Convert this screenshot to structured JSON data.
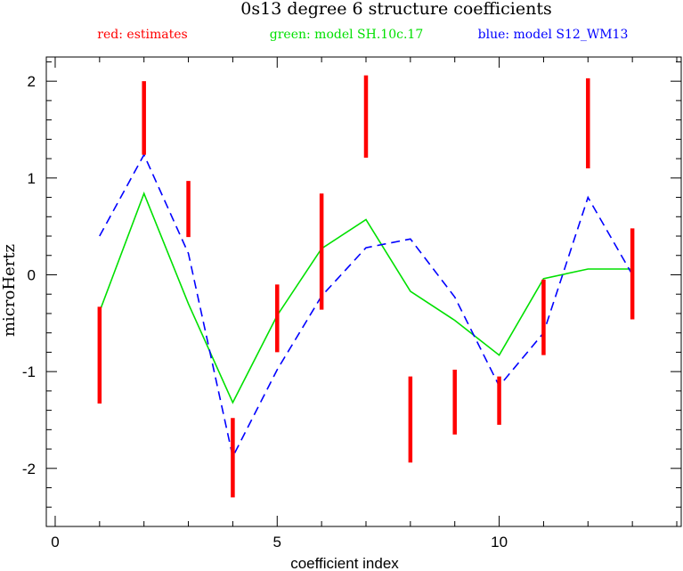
{
  "chart_data": {
    "type": "line",
    "title": "0s13 degree 6 structure coefficients",
    "legend": [
      {
        "label": "red: estimates",
        "color": "#ff0000"
      },
      {
        "label": "green: model SH.10c.17",
        "color": "#00e000"
      },
      {
        "label": "blue: model S12_WM13",
        "color": "#0000ff"
      }
    ],
    "xlabel": "coefficient index",
    "ylabel": "microHertz",
    "xlim": [
      -0.2,
      14.1
    ],
    "ylim": [
      -2.6,
      2.25
    ],
    "x_ticks": [
      {
        "value": 0,
        "label": "0"
      },
      {
        "value": 5,
        "label": "5"
      },
      {
        "value": 10,
        "label": "10"
      }
    ],
    "y_ticks": [
      {
        "value": 2,
        "label": "2"
      },
      {
        "value": 1,
        "label": "1"
      },
      {
        "value": 0,
        "label": "0"
      },
      {
        "value": -1,
        "label": "-1"
      },
      {
        "value": -2,
        "label": "-2"
      }
    ],
    "grid": false,
    "estimates": [
      {
        "x": 1,
        "low": -1.33,
        "high": -0.33
      },
      {
        "x": 2,
        "low": 1.24,
        "high": 2.0
      },
      {
        "x": 3,
        "low": 0.39,
        "high": 0.97
      },
      {
        "x": 4,
        "low": -2.3,
        "high": -1.48
      },
      {
        "x": 5,
        "low": -0.8,
        "high": -0.1
      },
      {
        "x": 6,
        "low": -0.36,
        "high": 0.84
      },
      {
        "x": 7,
        "low": 1.21,
        "high": 2.06
      },
      {
        "x": 8,
        "low": -1.94,
        "high": -1.05
      },
      {
        "x": 9,
        "low": -1.65,
        "high": -0.98
      },
      {
        "x": 10,
        "low": -1.55,
        "high": -1.05
      },
      {
        "x": 11,
        "low": -0.83,
        "high": -0.05
      },
      {
        "x": 12,
        "low": 1.1,
        "high": 2.03
      },
      {
        "x": 13,
        "low": -0.46,
        "high": 0.48
      }
    ],
    "series": [
      {
        "name": "model SH.10c.17",
        "color": "#00e000",
        "style": "solid",
        "x": [
          1,
          2,
          3,
          4,
          5,
          6,
          7,
          8,
          9,
          10,
          11,
          12,
          13
        ],
        "y": [
          -0.38,
          0.84,
          -0.3,
          -1.32,
          -0.42,
          0.27,
          0.57,
          -0.17,
          -0.47,
          -0.83,
          -0.04,
          0.06,
          0.06
        ]
      },
      {
        "name": "model S12_WM13",
        "color": "#0000ff",
        "style": "dashed",
        "x": [
          1,
          2,
          3,
          4,
          5,
          6,
          7,
          8,
          9,
          10,
          11,
          12,
          13
        ],
        "y": [
          0.4,
          1.24,
          0.22,
          -1.88,
          -0.98,
          -0.22,
          0.28,
          0.37,
          -0.23,
          -1.15,
          -0.6,
          0.8,
          0.0
        ]
      }
    ]
  }
}
